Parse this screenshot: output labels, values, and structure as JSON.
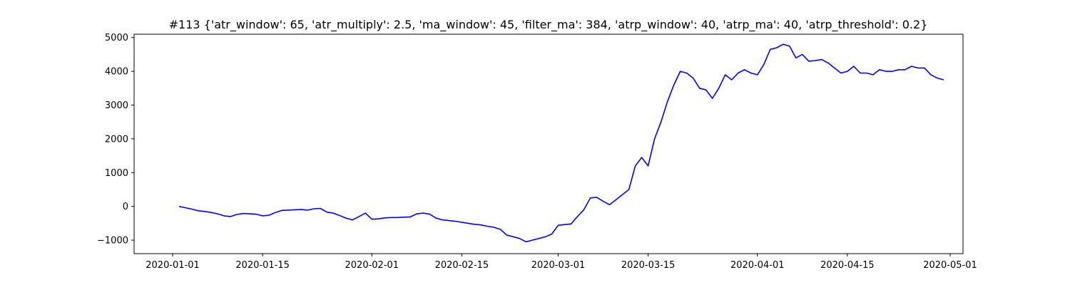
{
  "chart_data": {
    "type": "line",
    "title": "#113 {'atr_window': 65, 'atr_multiply': 2.5, 'ma_window': 45, 'filter_ma': 384, 'atrp_window': 40, 'atrp_ma': 40, 'atrp_threshold': 0.2}",
    "xlabel": "",
    "ylabel": "",
    "x_type": "date",
    "xlim": [
      "2019-12-26",
      "2020-05-03"
    ],
    "ylim": [
      -1400,
      5100
    ],
    "x_ticks": [
      "2020-01-01",
      "2020-01-15",
      "2020-02-01",
      "2020-02-15",
      "2020-03-01",
      "2020-03-15",
      "2020-04-01",
      "2020-04-15",
      "2020-05-01"
    ],
    "y_ticks": [
      -1000,
      0,
      1000,
      2000,
      3000,
      4000,
      5000
    ],
    "grid": false,
    "line_color": "#0000ff",
    "series": [
      {
        "x": [
          "2020-01-02",
          "2020-01-03",
          "2020-01-04",
          "2020-01-05",
          "2020-01-06",
          "2020-01-07",
          "2020-01-08",
          "2020-01-09",
          "2020-01-10",
          "2020-01-11",
          "2020-01-12",
          "2020-01-13",
          "2020-01-14",
          "2020-01-15",
          "2020-01-16",
          "2020-01-17",
          "2020-01-18",
          "2020-01-19",
          "2020-01-20",
          "2020-01-21",
          "2020-01-22",
          "2020-01-23",
          "2020-01-24",
          "2020-01-25",
          "2020-01-26",
          "2020-01-27",
          "2020-01-28",
          "2020-01-29",
          "2020-01-30",
          "2020-01-31",
          "2020-02-01",
          "2020-02-02",
          "2020-02-03",
          "2020-02-04",
          "2020-02-05",
          "2020-02-06",
          "2020-02-07",
          "2020-02-08",
          "2020-02-09",
          "2020-02-10",
          "2020-02-11",
          "2020-02-12",
          "2020-02-13",
          "2020-02-14",
          "2020-02-15",
          "2020-02-16",
          "2020-02-17",
          "2020-02-18",
          "2020-02-19",
          "2020-02-20",
          "2020-02-21",
          "2020-02-22",
          "2020-02-23",
          "2020-02-24",
          "2020-02-25",
          "2020-02-26",
          "2020-02-27",
          "2020-02-28",
          "2020-02-29",
          "2020-03-01",
          "2020-03-02",
          "2020-03-03",
          "2020-03-04",
          "2020-03-05",
          "2020-03-06",
          "2020-03-07",
          "2020-03-08",
          "2020-03-09",
          "2020-03-10",
          "2020-03-11",
          "2020-03-12",
          "2020-03-13",
          "2020-03-14",
          "2020-03-15",
          "2020-03-16",
          "2020-03-17",
          "2020-03-18",
          "2020-03-19",
          "2020-03-20",
          "2020-03-21",
          "2020-03-22",
          "2020-03-23",
          "2020-03-24",
          "2020-03-25",
          "2020-03-26",
          "2020-03-27",
          "2020-03-28",
          "2020-03-29",
          "2020-03-30",
          "2020-03-31",
          "2020-04-01",
          "2020-04-02",
          "2020-04-03",
          "2020-04-04",
          "2020-04-05",
          "2020-04-06",
          "2020-04-07",
          "2020-04-08",
          "2020-04-09",
          "2020-04-10",
          "2020-04-11",
          "2020-04-12",
          "2020-04-13",
          "2020-04-14",
          "2020-04-15",
          "2020-04-16",
          "2020-04-17",
          "2020-04-18",
          "2020-04-19",
          "2020-04-20",
          "2020-04-21",
          "2020-04-22",
          "2020-04-23",
          "2020-04-24",
          "2020-04-25",
          "2020-04-26",
          "2020-04-27",
          "2020-04-28",
          "2020-04-29",
          "2020-04-30"
        ],
        "y": [
          0,
          -40,
          -80,
          -130,
          -150,
          -180,
          -220,
          -280,
          -300,
          -240,
          -210,
          -220,
          -230,
          -280,
          -260,
          -180,
          -120,
          -110,
          -100,
          -90,
          -110,
          -70,
          -60,
          -170,
          -200,
          -270,
          -350,
          -400,
          -300,
          -200,
          -380,
          -370,
          -340,
          -330,
          -330,
          -320,
          -310,
          -220,
          -200,
          -230,
          -350,
          -400,
          -420,
          -440,
          -470,
          -500,
          -530,
          -550,
          -590,
          -620,
          -680,
          -850,
          -900,
          -950,
          -1050,
          -1000,
          -950,
          -900,
          -820,
          -560,
          -540,
          -520,
          -300,
          -100,
          250,
          270,
          150,
          50,
          200,
          350,
          500,
          1200,
          1450,
          1200,
          2000,
          2500,
          3100,
          3600,
          4000,
          3950,
          3800,
          3500,
          3450,
          3200,
          3500,
          3900,
          3750,
          3950,
          4050,
          3950,
          3900,
          4200,
          4650,
          4700,
          4800,
          4750,
          4400,
          4500,
          4300,
          4320,
          4350,
          4250,
          4100,
          3950,
          4000,
          4150,
          3950,
          3950,
          3900,
          4050,
          4000,
          4000,
          4050,
          4050,
          4150,
          4100,
          4100,
          3900,
          3800,
          3750
        ]
      }
    ]
  }
}
